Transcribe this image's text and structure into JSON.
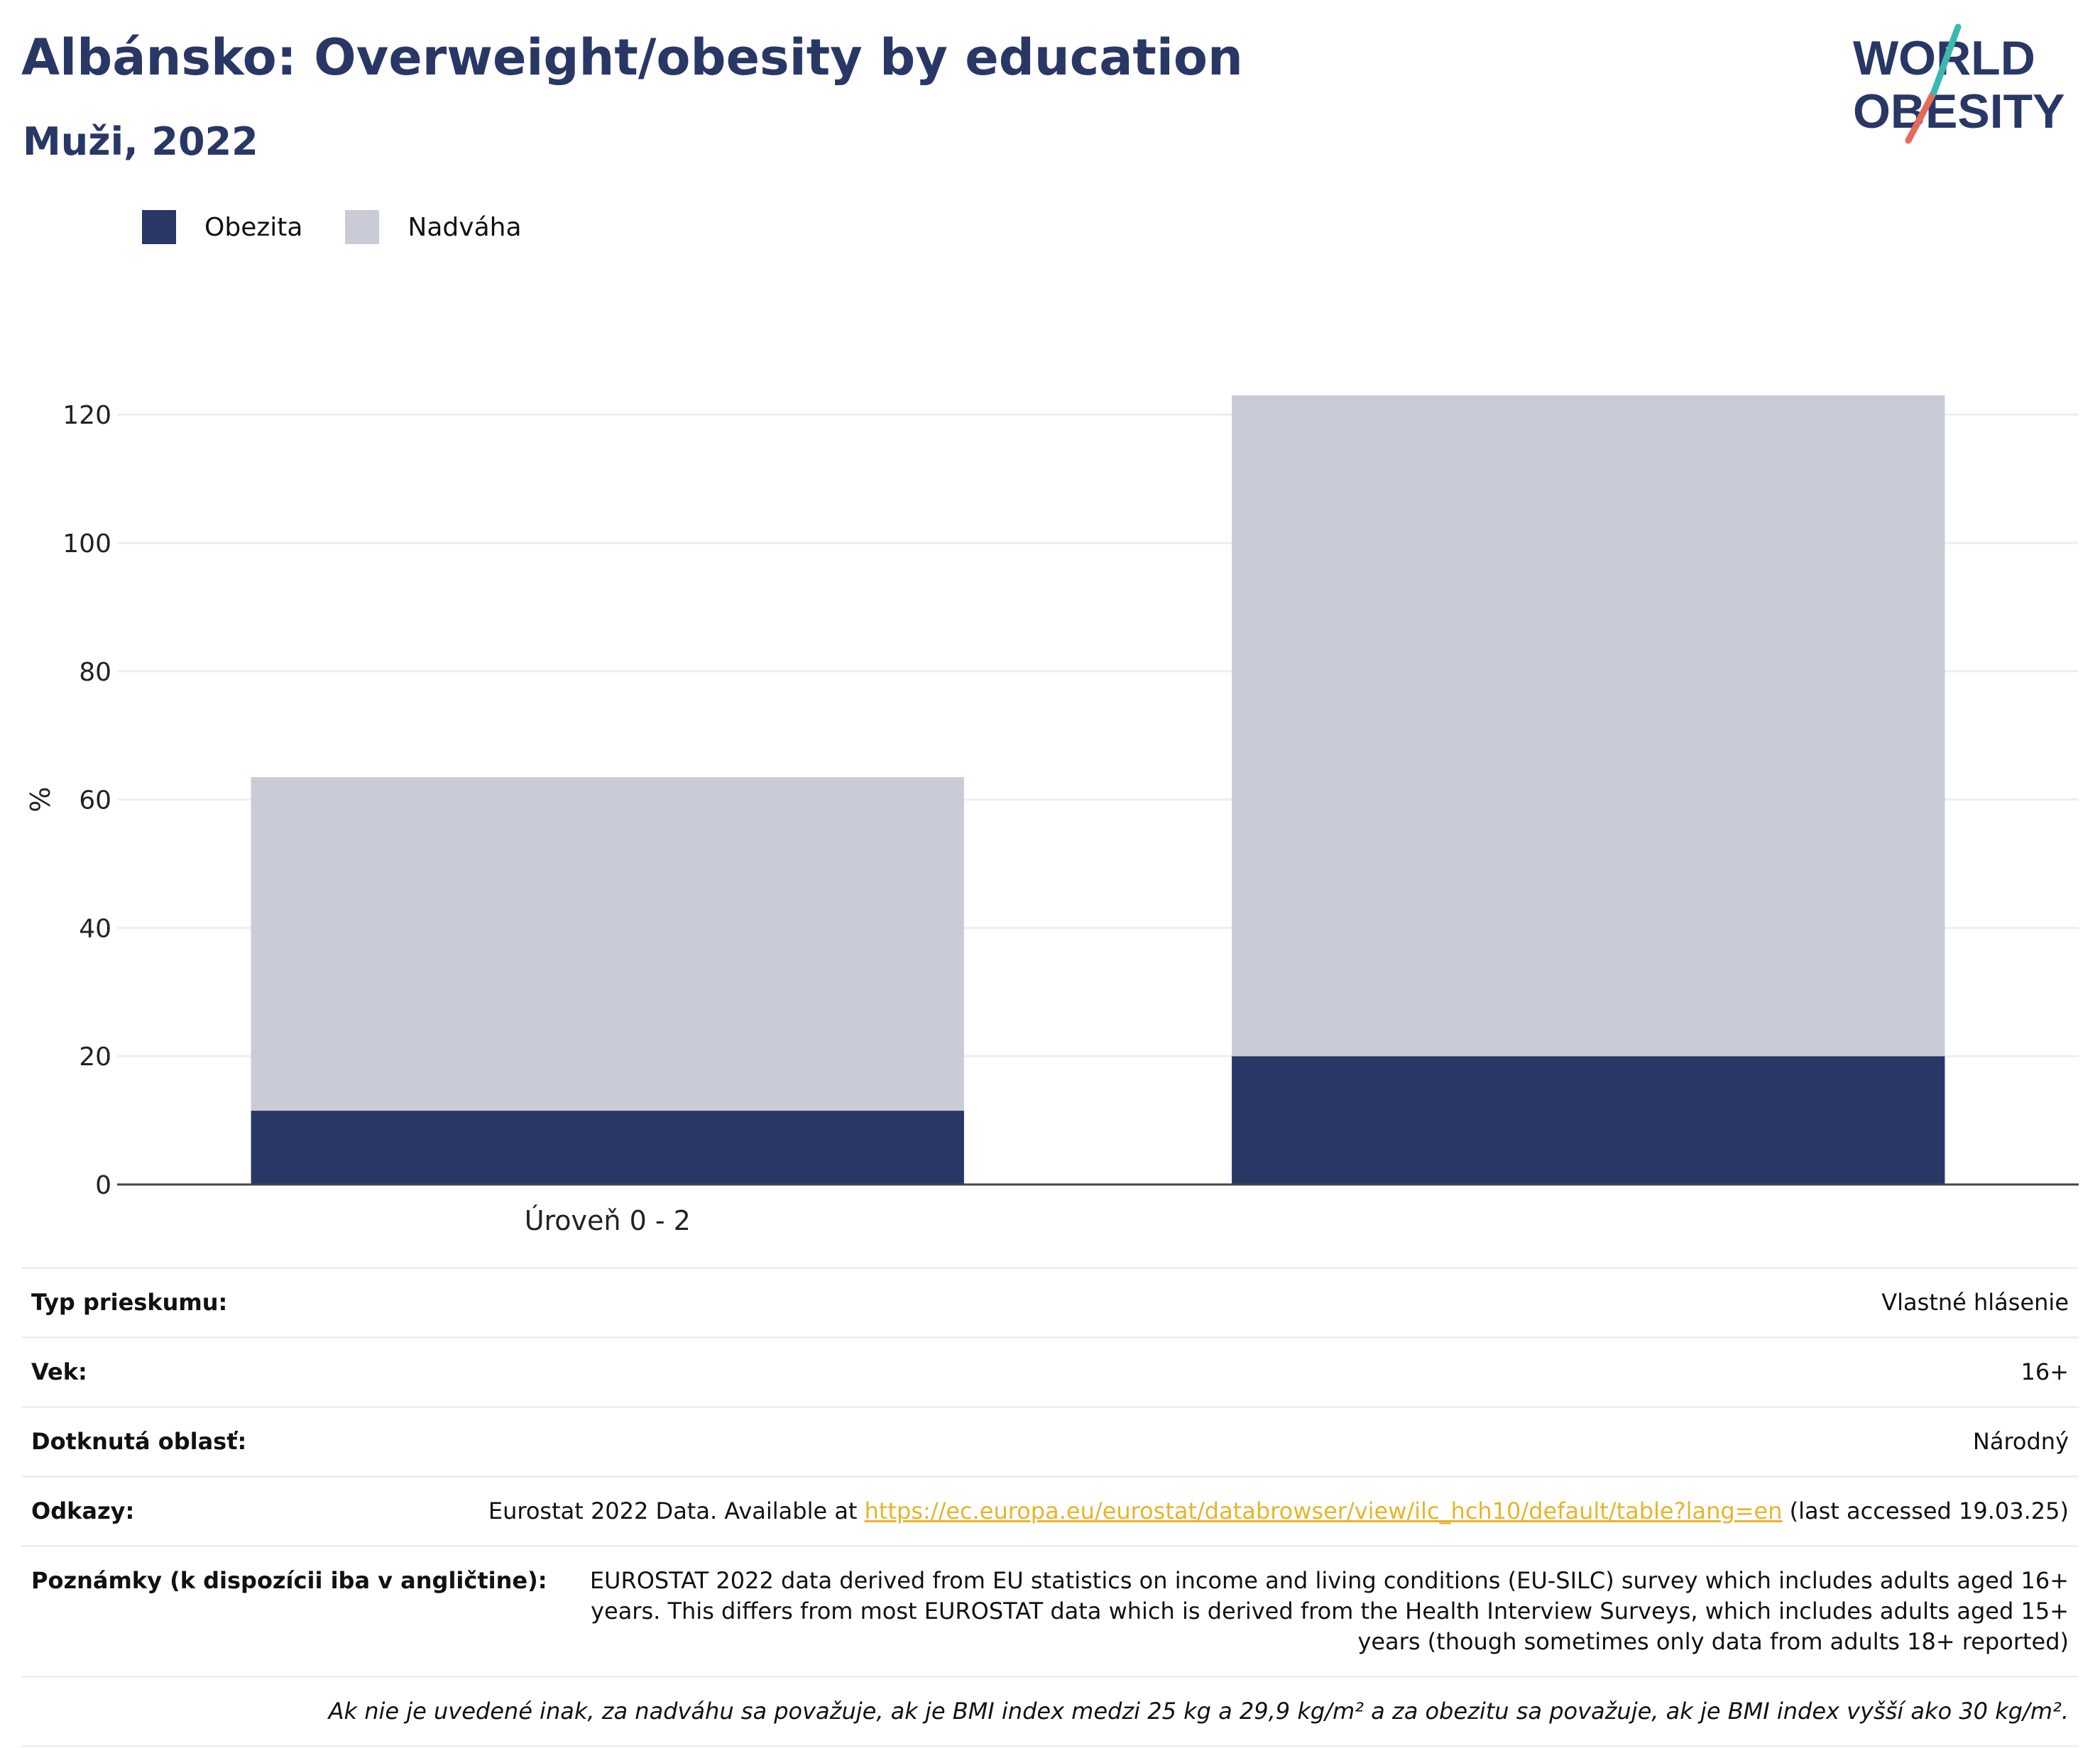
{
  "header": {
    "title": "Albánsko: Overweight/obesity by education",
    "subtitle": "Muži, 2022"
  },
  "logo": {
    "line1": "WORLD",
    "line2": "OBESITY"
  },
  "legend": [
    {
      "label": "Obezita",
      "color": "#283765"
    },
    {
      "label": "Nadváha",
      "color": "#c9ccd7"
    }
  ],
  "chart_data": {
    "type": "bar",
    "stacked": true,
    "categories": [
      "Úroveň 0 - 2",
      ""
    ],
    "series": [
      {
        "name": "Obezita",
        "color": "#283765",
        "values": [
          11.5,
          20
        ]
      },
      {
        "name": "Nadváha",
        "color": "#c9ccd7",
        "values": [
          52,
          103
        ]
      }
    ],
    "ylabel": "%",
    "ylim": [
      0,
      130
    ],
    "yticks": [
      0,
      20,
      40,
      60,
      80,
      100,
      120
    ],
    "grid": true,
    "legend_position": "top-left"
  },
  "info": {
    "survey_type_label": "Typ prieskumu:",
    "survey_type_value": "Vlastné hlásenie",
    "age_label": "Vek:",
    "age_value": "16+",
    "area_label": "Dotknutá oblasť:",
    "area_value": "Národný",
    "refs_label": "Odkazy:",
    "refs_pre": "Eurostat 2022 Data. Available at ",
    "refs_link": "https://ec.europa.eu/eurostat/databrowser/view/ilc_hch10/default/table?lang=en",
    "refs_post": " (last accessed 19.03.25)",
    "notes_label": "Poznámky (k dispozícii iba v angličtine):",
    "notes_value": "EUROSTAT 2022 data derived from EU statistics on income and living conditions (EU-SILC) survey which includes adults aged 16+ years. This differs from most EUROSTAT data which is derived from the Health Interview Surveys, which includes adults aged 15+ years (though sometimes only data from adults 18+ reported)",
    "footnote": "Ak nie je uvedené inak, za nadváhu sa považuje, ak je BMI index medzi 25 kg a 29,9 kg/m² a za obezitu sa považuje, ak je BMI index vyšší ako 30 kg/m²."
  }
}
